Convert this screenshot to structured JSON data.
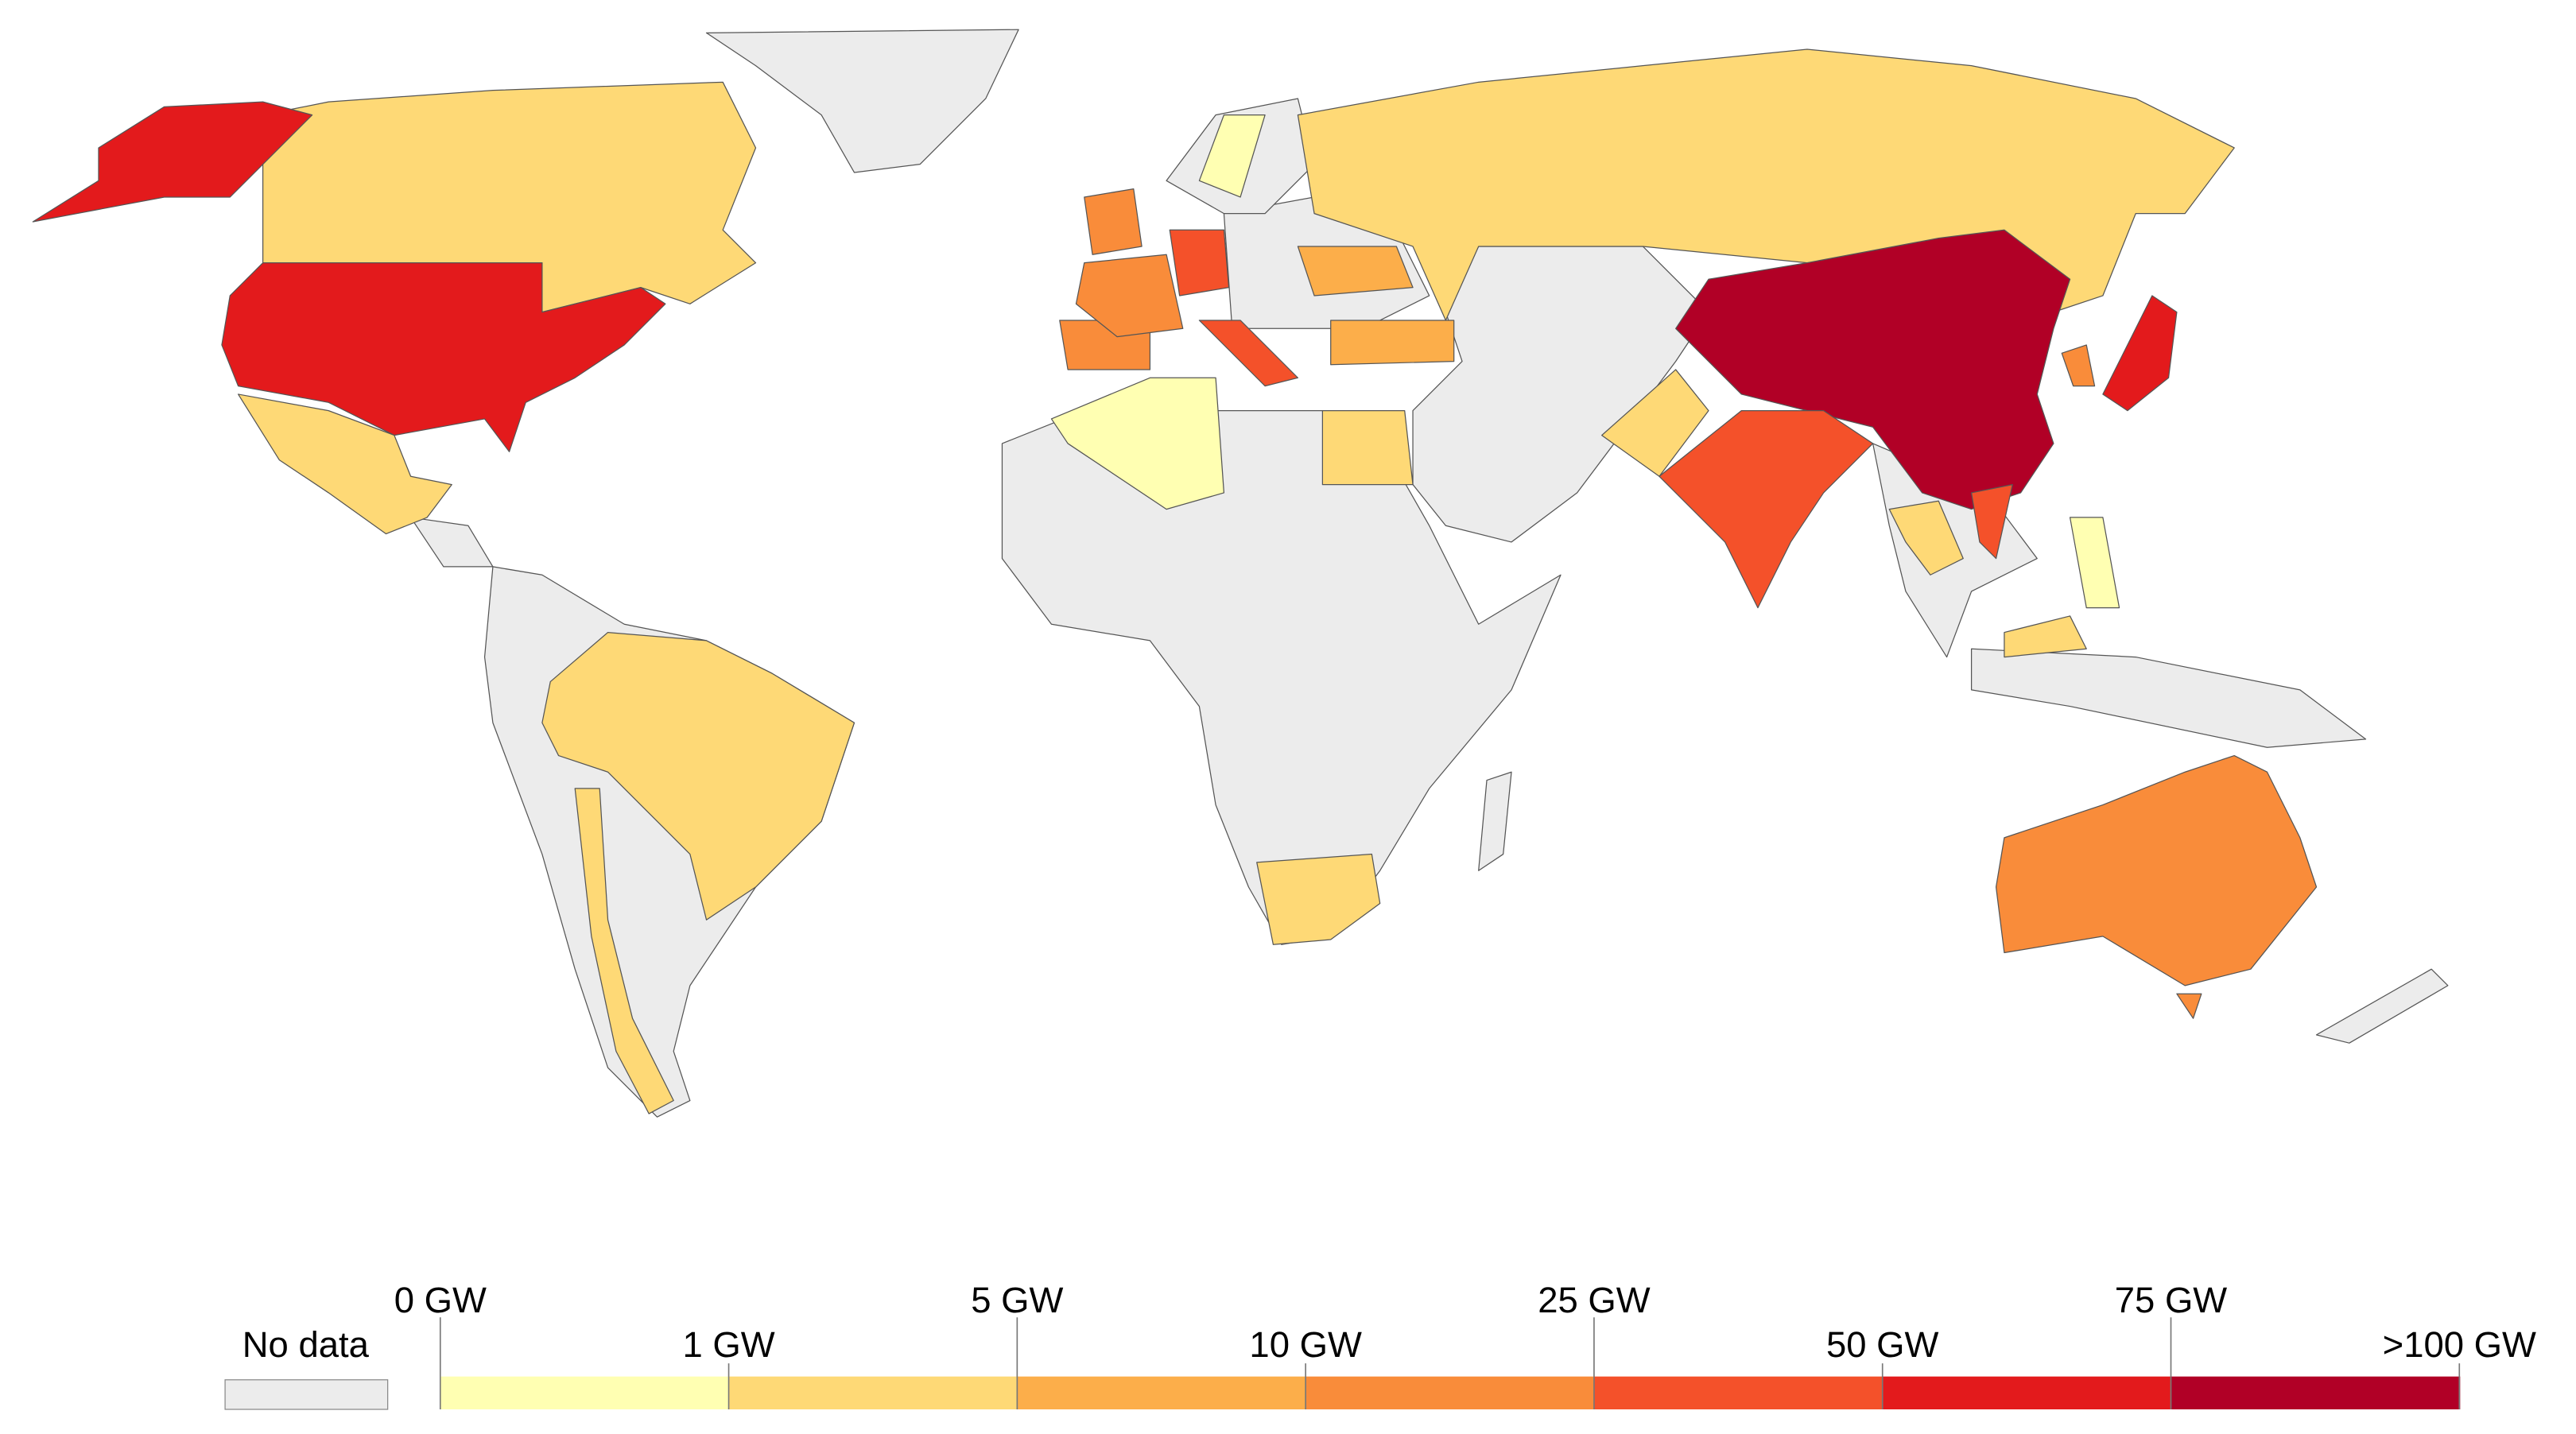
{
  "legend": {
    "no_data": {
      "label": "No data",
      "color": "#ececec"
    },
    "ticks": [
      "0 GW",
      "1 GW",
      "5 GW",
      "10 GW",
      "25 GW",
      "50 GW",
      "75 GW",
      ">100 GW"
    ],
    "colors": [
      "#ffffb2",
      "#fed976",
      "#fcae4a",
      "#f98c3a",
      "#f4512a",
      "#e31a1c",
      "#b10026"
    ]
  }
}
